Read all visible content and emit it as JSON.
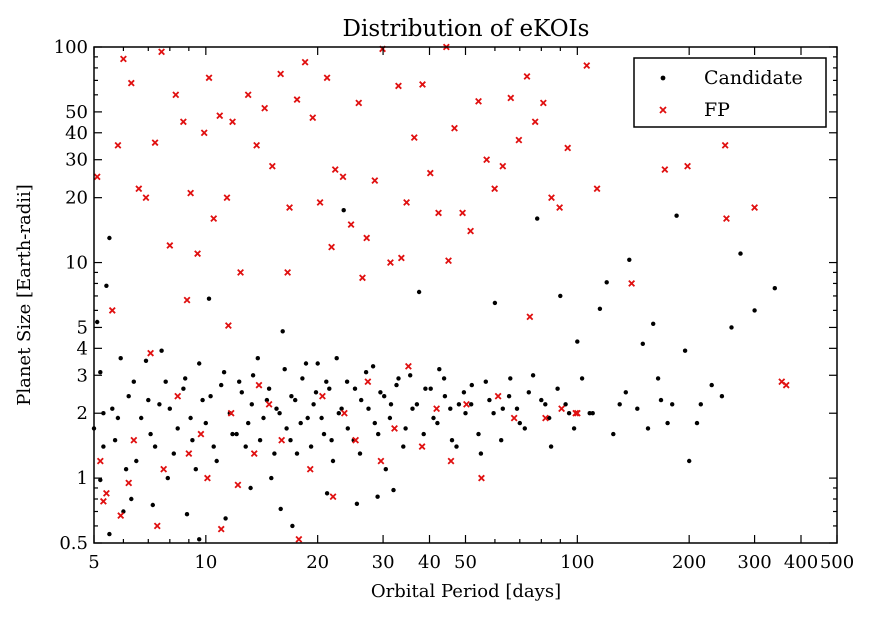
{
  "chart_data": {
    "type": "scatter",
    "title": "Distribution of eKOIs",
    "xlabel": "Orbital Period [days]",
    "ylabel": "Planet Size [Earth-radii]",
    "x_scale": "log",
    "y_scale": "log",
    "xlim": [
      5,
      500
    ],
    "ylim": [
      0.5,
      100
    ],
    "x_ticks": [
      5,
      10,
      20,
      30,
      40,
      50,
      100,
      200,
      300,
      400,
      500
    ],
    "x_tick_labels": [
      "5",
      "10",
      "20",
      "30",
      "40",
      "50",
      "100",
      "200",
      "300",
      "400",
      "500"
    ],
    "y_ticks": [
      0.5,
      1,
      2,
      3,
      4,
      5,
      10,
      20,
      30,
      40,
      50,
      100
    ],
    "y_tick_labels": [
      "0.5",
      "1",
      "2",
      "3",
      "4",
      "5",
      "10",
      "20",
      "30",
      "40",
      "50",
      "100"
    ],
    "legend_position": "top-right",
    "grid": false,
    "series": [
      {
        "name": "Candidate",
        "marker": "dot",
        "color": "#000000",
        "points": [
          [
            5.2,
            3.1
          ],
          [
            5.5,
            13
          ],
          [
            5.4,
            7.8
          ],
          [
            5.8,
            1.9
          ],
          [
            6.2,
            2.4
          ],
          [
            5.3,
            1.4
          ],
          [
            5.6,
            2.1
          ],
          [
            6.5,
            1.2
          ],
          [
            7.1,
            1.6
          ],
          [
            7.5,
            2.2
          ],
          [
            6.9,
            3.5
          ],
          [
            7.8,
            2.8
          ],
          [
            8.2,
            1.3
          ],
          [
            8.7,
            2.6
          ],
          [
            9.1,
            1.9
          ],
          [
            9.4,
            1.1
          ],
          [
            9.8,
            2.3
          ],
          [
            10.2,
            6.8
          ],
          [
            10.5,
            1.4
          ],
          [
            11.0,
            2.7
          ],
          [
            11.6,
            2.0
          ],
          [
            12.1,
            1.6
          ],
          [
            12.5,
            2.5
          ],
          [
            13.0,
            1.8
          ],
          [
            13.4,
            3.0
          ],
          [
            14.0,
            1.5
          ],
          [
            14.6,
            2.3
          ],
          [
            15.0,
            1.0
          ],
          [
            15.5,
            2.1
          ],
          [
            16.1,
            4.8
          ],
          [
            16.5,
            1.7
          ],
          [
            17.0,
            2.4
          ],
          [
            17.6,
            1.3
          ],
          [
            18.2,
            2.9
          ],
          [
            18.8,
            1.9
          ],
          [
            19.5,
            2.2
          ],
          [
            20.0,
            3.4
          ],
          [
            20.8,
            1.6
          ],
          [
            21.5,
            2.6
          ],
          [
            22.0,
            1.2
          ],
          [
            22.8,
            2.0
          ],
          [
            23.5,
            17.5
          ],
          [
            24.0,
            2.8
          ],
          [
            25.0,
            1.5
          ],
          [
            26.2,
            2.3
          ],
          [
            27.0,
            3.1
          ],
          [
            28.5,
            1.8
          ],
          [
            29.5,
            2.5
          ],
          [
            30.5,
            1.1
          ],
          [
            31.5,
            2.2
          ],
          [
            33.0,
            2.9
          ],
          [
            34.5,
            1.7
          ],
          [
            36.0,
            2.1
          ],
          [
            37.5,
            7.3
          ],
          [
            39.0,
            2.6
          ],
          [
            41.0,
            1.9
          ],
          [
            42.5,
            3.2
          ],
          [
            44.0,
            2.4
          ],
          [
            46.0,
            1.5
          ],
          [
            48.0,
            2.2
          ],
          [
            50.0,
            2.0
          ],
          [
            52.0,
            2.7
          ],
          [
            55.0,
            1.3
          ],
          [
            58.0,
            2.3
          ],
          [
            60.0,
            6.5
          ],
          [
            63.0,
            2.1
          ],
          [
            66.0,
            2.9
          ],
          [
            70.0,
            1.8
          ],
          [
            74.0,
            2.5
          ],
          [
            78.0,
            16
          ],
          [
            82.0,
            2.2
          ],
          [
            85.0,
            1.4
          ],
          [
            90.0,
            7
          ],
          [
            95.0,
            2.0
          ],
          [
            100.0,
            4.3
          ],
          [
            108.0,
            2.0
          ],
          [
            115.0,
            6.1
          ],
          [
            120.0,
            8.1
          ],
          [
            130.0,
            2.2
          ],
          [
            138.0,
            10.3
          ],
          [
            145.0,
            2.1
          ],
          [
            150.0,
            4.2
          ],
          [
            160.0,
            5.2
          ],
          [
            168.0,
            2.3
          ],
          [
            175.0,
            1.8
          ],
          [
            185.0,
            16.5
          ],
          [
            195.0,
            3.9
          ],
          [
            200.0,
            1.2
          ],
          [
            215.0,
            2.2
          ],
          [
            230.0,
            2.7
          ],
          [
            260.0,
            5.0
          ],
          [
            275.0,
            11
          ],
          [
            300.0,
            6.0
          ],
          [
            340.0,
            7.6
          ],
          [
            5.1,
            5.3
          ],
          [
            5.2,
            0.98
          ],
          [
            5.5,
            0.55
          ],
          [
            6.0,
            0.7
          ],
          [
            6.3,
            0.8
          ],
          [
            7.2,
            0.75
          ],
          [
            7.9,
            1.0
          ],
          [
            8.9,
            0.68
          ],
          [
            9.6,
            0.52
          ],
          [
            11.3,
            0.65
          ],
          [
            13.2,
            0.9
          ],
          [
            15.9,
            0.72
          ],
          [
            17.1,
            0.6
          ],
          [
            21.2,
            0.85
          ],
          [
            25.5,
            0.76
          ],
          [
            29.0,
            0.82
          ],
          [
            32.0,
            0.88
          ],
          [
            5.0,
            1.7
          ],
          [
            5.3,
            2.0
          ],
          [
            5.7,
            1.5
          ],
          [
            5.9,
            3.6
          ],
          [
            6.1,
            1.1
          ],
          [
            6.4,
            2.8
          ],
          [
            6.7,
            1.9
          ],
          [
            7.0,
            2.3
          ],
          [
            7.3,
            1.4
          ],
          [
            7.6,
            3.9
          ],
          [
            8.0,
            2.1
          ],
          [
            8.4,
            1.7
          ],
          [
            8.8,
            2.9
          ],
          [
            9.2,
            1.5
          ],
          [
            9.6,
            3.4
          ],
          [
            10.0,
            1.8
          ],
          [
            10.3,
            2.4
          ],
          [
            10.7,
            1.2
          ],
          [
            11.2,
            3.1
          ],
          [
            11.8,
            1.6
          ],
          [
            12.3,
            2.8
          ],
          [
            12.8,
            1.4
          ],
          [
            13.3,
            2.2
          ],
          [
            13.8,
            3.6
          ],
          [
            14.3,
            1.9
          ],
          [
            14.8,
            2.6
          ],
          [
            15.3,
            1.3
          ],
          [
            15.8,
            2.0
          ],
          [
            16.3,
            3.2
          ],
          [
            16.9,
            1.5
          ],
          [
            17.4,
            2.3
          ],
          [
            18.0,
            1.8
          ],
          [
            18.6,
            3.4
          ],
          [
            19.2,
            1.4
          ],
          [
            19.8,
            2.5
          ],
          [
            20.5,
            1.9
          ],
          [
            21.1,
            2.8
          ],
          [
            21.8,
            1.5
          ],
          [
            22.5,
            3.6
          ],
          [
            23.2,
            2.1
          ],
          [
            24.1,
            1.7
          ],
          [
            25.2,
            2.6
          ],
          [
            26.0,
            1.3
          ],
          [
            27.4,
            2.1
          ],
          [
            28.2,
            3.3
          ],
          [
            29.1,
            1.6
          ],
          [
            30.2,
            2.4
          ],
          [
            31.3,
            1.9
          ],
          [
            32.6,
            2.7
          ],
          [
            34.0,
            1.4
          ],
          [
            35.5,
            3.0
          ],
          [
            37.0,
            2.2
          ],
          [
            38.6,
            1.6
          ],
          [
            40.3,
            2.6
          ],
          [
            42.0,
            1.8
          ],
          [
            43.8,
            2.9
          ],
          [
            45.5,
            2.1
          ],
          [
            47.3,
            1.4
          ],
          [
            49.5,
            2.5
          ],
          [
            51.8,
            2.2
          ],
          [
            54.2,
            1.6
          ],
          [
            56.7,
            2.8
          ],
          [
            59.5,
            2.0
          ],
          [
            62.4,
            1.5
          ],
          [
            65.5,
            2.4
          ],
          [
            68.8,
            2.1
          ],
          [
            72.2,
            1.7
          ],
          [
            76.0,
            3.0
          ],
          [
            80.0,
            2.3
          ],
          [
            84.0,
            1.9
          ],
          [
            88.5,
            2.6
          ],
          [
            93.0,
            2.2
          ],
          [
            98.0,
            1.7
          ],
          [
            103.0,
            2.9
          ],
          [
            110.0,
            2.0
          ],
          [
            125.0,
            1.6
          ],
          [
            135.0,
            2.5
          ],
          [
            155.0,
            1.7
          ],
          [
            165.0,
            2.9
          ],
          [
            180.0,
            2.2
          ],
          [
            210.0,
            1.8
          ],
          [
            245.0,
            2.4
          ]
        ]
      },
      {
        "name": "FP",
        "marker": "x",
        "color": "#e01010",
        "points": [
          [
            5.1,
            25
          ],
          [
            5.4,
            0.85
          ],
          [
            5.6,
            6
          ],
          [
            5.8,
            35
          ],
          [
            6.0,
            88
          ],
          [
            6.3,
            68
          ],
          [
            6.6,
            22
          ],
          [
            6.9,
            20
          ],
          [
            7.3,
            36
          ],
          [
            7.6,
            95
          ],
          [
            8.0,
            12
          ],
          [
            8.3,
            60
          ],
          [
            8.7,
            45
          ],
          [
            9.1,
            21
          ],
          [
            9.5,
            11
          ],
          [
            9.9,
            40
          ],
          [
            10.2,
            72
          ],
          [
            10.5,
            16
          ],
          [
            10.9,
            48
          ],
          [
            11.4,
            20
          ],
          [
            11.8,
            45
          ],
          [
            12.4,
            9
          ],
          [
            13.0,
            60
          ],
          [
            13.7,
            35
          ],
          [
            14.4,
            52
          ],
          [
            15.1,
            28
          ],
          [
            15.9,
            75
          ],
          [
            16.8,
            18
          ],
          [
            17.6,
            57
          ],
          [
            18.5,
            85
          ],
          [
            19.4,
            47
          ],
          [
            20.3,
            19
          ],
          [
            21.2,
            72
          ],
          [
            22.3,
            27
          ],
          [
            23.4,
            25
          ],
          [
            24.6,
            15
          ],
          [
            25.8,
            55
          ],
          [
            27.1,
            13
          ],
          [
            28.5,
            24
          ],
          [
            29.9,
            98
          ],
          [
            31.4,
            10
          ],
          [
            33.0,
            66
          ],
          [
            34.7,
            19
          ],
          [
            36.4,
            38
          ],
          [
            38.3,
            67
          ],
          [
            40.2,
            26
          ],
          [
            42.3,
            17
          ],
          [
            44.4,
            100
          ],
          [
            46.7,
            42
          ],
          [
            49.1,
            17
          ],
          [
            51.6,
            14
          ],
          [
            54.2,
            56
          ],
          [
            57.0,
            30
          ],
          [
            59.9,
            22
          ],
          [
            63.0,
            28
          ],
          [
            66.2,
            58
          ],
          [
            69.6,
            37
          ],
          [
            73.2,
            73
          ],
          [
            77.0,
            45
          ],
          [
            81.0,
            55
          ],
          [
            85.2,
            20
          ],
          [
            89.6,
            18
          ],
          [
            94.2,
            34
          ],
          [
            99.0,
            2
          ],
          [
            106.0,
            82
          ],
          [
            113.0,
            22
          ],
          [
            140.0,
            8
          ],
          [
            172.0,
            27
          ],
          [
            198.0,
            28
          ],
          [
            250.0,
            35
          ],
          [
            252.0,
            16
          ],
          [
            300.0,
            18
          ],
          [
            355.0,
            2.8
          ],
          [
            365.0,
            2.7
          ],
          [
            5.2,
            1.2
          ],
          [
            5.9,
            0.67
          ],
          [
            6.4,
            1.5
          ],
          [
            7.1,
            3.8
          ],
          [
            7.7,
            1.1
          ],
          [
            8.4,
            2.4
          ],
          [
            9.0,
            1.3
          ],
          [
            10.1,
            1.0
          ],
          [
            11.0,
            0.58
          ],
          [
            11.7,
            2.0
          ],
          [
            12.2,
            0.93
          ],
          [
            13.5,
            1.3
          ],
          [
            14.8,
            2.2
          ],
          [
            16.0,
            1.5
          ],
          [
            17.8,
            0.52
          ],
          [
            19.1,
            1.1
          ],
          [
            20.6,
            2.4
          ],
          [
            22.0,
            0.82
          ],
          [
            23.6,
            2.0
          ],
          [
            25.3,
            1.5
          ],
          [
            27.3,
            2.8
          ],
          [
            29.6,
            1.2
          ],
          [
            32.2,
            1.7
          ],
          [
            35.1,
            3.3
          ],
          [
            38.2,
            1.4
          ],
          [
            41.8,
            2.1
          ],
          [
            45.7,
            1.2
          ],
          [
            50.3,
            2.2
          ],
          [
            55.2,
            1.0
          ],
          [
            61.2,
            2.4
          ],
          [
            67.6,
            1.9
          ],
          [
            74.5,
            5.6
          ],
          [
            82.1,
            1.9
          ],
          [
            90.7,
            2.1
          ],
          [
            100.0,
            2.0
          ],
          [
            6.2,
            0.95
          ],
          [
            8.9,
            6.7
          ],
          [
            11.5,
            5.1
          ],
          [
            16.6,
            9.0
          ],
          [
            21.8,
            11.8
          ],
          [
            26.4,
            8.5
          ],
          [
            33.6,
            10.5
          ],
          [
            45.0,
            10.2
          ],
          [
            5.3,
            0.78
          ],
          [
            7.4,
            0.6
          ],
          [
            9.7,
            1.6
          ],
          [
            13.9,
            2.7
          ]
        ]
      }
    ]
  }
}
